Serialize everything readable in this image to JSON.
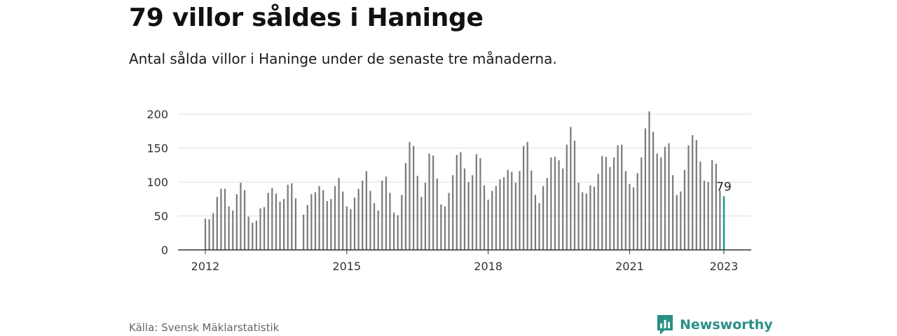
{
  "title": "79 villor såldes i Haninge",
  "subtitle": "Antal sålda villor i Haninge under de senaste tre månaderna.",
  "source": "Källa: Svensk Mäklarstatistik",
  "brand": {
    "name": "Newsworthy",
    "icon": "newsworthy-logo-icon"
  },
  "colors": {
    "bar": "#7a7a7a",
    "highlight": "#1a9e96",
    "grid": "#dddddd",
    "axis": "#333333",
    "brand": "#2a8f86"
  },
  "chart_data": {
    "type": "bar",
    "ylim": [
      0,
      200
    ],
    "yticks": [
      0,
      50,
      100,
      150,
      200
    ],
    "xticks": [
      {
        "label": "2012",
        "index": 0
      },
      {
        "label": "2015",
        "index": 36
      },
      {
        "label": "2018",
        "index": 72
      },
      {
        "label": "2021",
        "index": 108
      },
      {
        "label": "2023",
        "index": 132
      }
    ],
    "grid": true,
    "highlight_label": "79",
    "series": [
      {
        "start": "2012-01",
        "frequency": "monthly",
        "values": [
          46,
          45,
          54,
          78,
          90,
          90,
          64,
          58,
          82,
          99,
          88,
          49,
          40,
          43,
          61,
          63,
          84,
          91,
          83,
          71,
          75,
          96,
          98,
          76,
          null,
          52,
          66,
          82,
          85,
          94,
          88,
          72,
          75,
          94,
          106,
          86,
          64,
          60,
          77,
          90,
          102,
          116,
          87,
          69,
          58,
          102,
          108,
          84,
          55,
          51,
          81,
          128,
          159,
          153,
          109,
          78,
          99,
          142,
          139,
          105,
          67,
          64,
          84,
          110,
          140,
          144,
          120,
          100,
          110,
          141,
          135,
          95,
          74,
          87,
          94,
          104,
          107,
          118,
          115,
          99,
          116,
          153,
          159,
          117,
          81,
          69,
          94,
          106,
          136,
          137,
          132,
          120,
          155,
          181,
          161,
          99,
          85,
          83,
          95,
          93,
          112,
          138,
          137,
          122,
          136,
          154,
          155,
          116,
          97,
          92,
          113,
          136,
          179,
          204,
          174,
          142,
          136,
          152,
          157,
          110,
          81,
          86,
          118,
          154,
          169,
          162,
          130,
          102,
          100,
          132,
          127,
          87,
          79
        ]
      }
    ]
  }
}
